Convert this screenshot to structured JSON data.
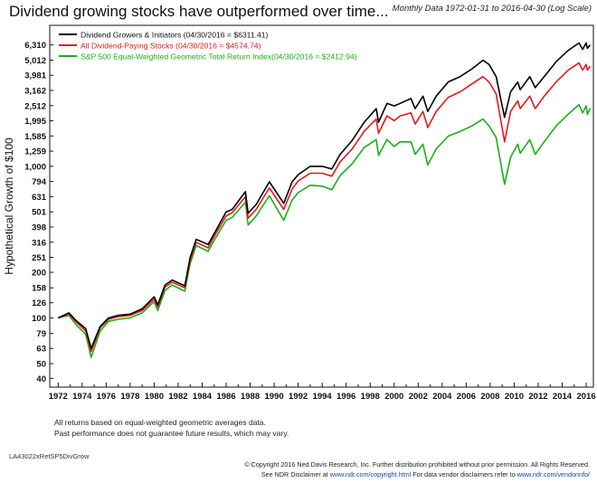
{
  "chart_data": {
    "type": "line",
    "title": "Dividend growing stocks have outperformed over time...",
    "subtitle": "Monthly Data 1972-01-31 to 2016-04-30 (Log Scale)",
    "xlabel": "",
    "ylabel": "Hypothetical Growth of $100",
    "y_scale": "log",
    "ylim": [
      35,
      8500
    ],
    "xlim": [
      1971.3,
      2016.6
    ],
    "y_ticks": [
      "6,310",
      "5,012",
      "3,981",
      "3,162",
      "2,512",
      "1,995",
      "1,585",
      "1,259",
      "1,000",
      "794",
      "631",
      "501",
      "398",
      "316",
      "251",
      "200",
      "158",
      "126",
      "100",
      "79",
      "63",
      "50",
      "40"
    ],
    "x_ticks": [
      "1972",
      "1974",
      "1976",
      "1978",
      "1980",
      "1982",
      "1984",
      "1986",
      "1988",
      "1990",
      "1992",
      "1994",
      "1996",
      "1998",
      "2000",
      "2002",
      "2004",
      "2006",
      "2008",
      "2010",
      "2012",
      "2014",
      "2016"
    ],
    "grid": false,
    "legend_position": "top-left",
    "series": [
      {
        "name": "Dividend Growers & Initiators (04/30/2016 = $6311.41)",
        "color": "#000000",
        "points": [
          [
            1972.0,
            100
          ],
          [
            1972.9,
            108
          ],
          [
            1973.5,
            96
          ],
          [
            1974.3,
            85
          ],
          [
            1974.75,
            63
          ],
          [
            1975.5,
            88
          ],
          [
            1976.2,
            100
          ],
          [
            1977.0,
            104
          ],
          [
            1978.0,
            106
          ],
          [
            1979.0,
            115
          ],
          [
            1980.0,
            138
          ],
          [
            1980.3,
            122
          ],
          [
            1980.9,
            165
          ],
          [
            1981.5,
            178
          ],
          [
            1982.55,
            163
          ],
          [
            1983.0,
            250
          ],
          [
            1983.5,
            330
          ],
          [
            1984.5,
            305
          ],
          [
            1985.0,
            360
          ],
          [
            1986.0,
            500
          ],
          [
            1986.5,
            520
          ],
          [
            1987.6,
            680
          ],
          [
            1987.83,
            490
          ],
          [
            1988.5,
            560
          ],
          [
            1989.6,
            790
          ],
          [
            1990.8,
            570
          ],
          [
            1991.5,
            790
          ],
          [
            1992.0,
            880
          ],
          [
            1993.0,
            1000
          ],
          [
            1994.0,
            1000
          ],
          [
            1994.8,
            960
          ],
          [
            1995.5,
            1200
          ],
          [
            1996.5,
            1480
          ],
          [
            1997.5,
            1950
          ],
          [
            1998.5,
            2400
          ],
          [
            1998.7,
            1950
          ],
          [
            1999.4,
            2600
          ],
          [
            2000.0,
            2500
          ],
          [
            2000.5,
            2600
          ],
          [
            2001.4,
            2800
          ],
          [
            2001.75,
            2400
          ],
          [
            2002.4,
            2900
          ],
          [
            2002.8,
            2300
          ],
          [
            2003.5,
            2900
          ],
          [
            2004.5,
            3600
          ],
          [
            2005.5,
            3900
          ],
          [
            2006.5,
            4400
          ],
          [
            2007.4,
            5000
          ],
          [
            2007.9,
            4700
          ],
          [
            2008.5,
            3900
          ],
          [
            2009.2,
            2100
          ],
          [
            2009.7,
            3100
          ],
          [
            2010.3,
            3600
          ],
          [
            2010.5,
            3200
          ],
          [
            2011.3,
            3900
          ],
          [
            2011.75,
            3300
          ],
          [
            2012.5,
            3900
          ],
          [
            2013.5,
            4900
          ],
          [
            2014.5,
            5800
          ],
          [
            2015.4,
            6500
          ],
          [
            2015.7,
            5900
          ],
          [
            2016.0,
            6500
          ],
          [
            2016.1,
            6000
          ],
          [
            2016.33,
            6311
          ]
        ]
      },
      {
        "name": "All Dividend-Paying Stocks (04/30/2016 = $4574.74)",
        "color": "#e8181c",
        "points": [
          [
            1972.0,
            100
          ],
          [
            1972.9,
            106
          ],
          [
            1973.5,
            94
          ],
          [
            1974.3,
            82
          ],
          [
            1974.75,
            60
          ],
          [
            1975.5,
            86
          ],
          [
            1976.2,
            98
          ],
          [
            1977.0,
            102
          ],
          [
            1978.0,
            104
          ],
          [
            1979.0,
            112
          ],
          [
            1980.0,
            133
          ],
          [
            1980.3,
            118
          ],
          [
            1980.9,
            160
          ],
          [
            1981.5,
            172
          ],
          [
            1982.55,
            158
          ],
          [
            1983.0,
            240
          ],
          [
            1983.5,
            315
          ],
          [
            1984.5,
            290
          ],
          [
            1985.0,
            345
          ],
          [
            1986.0,
            470
          ],
          [
            1986.5,
            495
          ],
          [
            1987.6,
            630
          ],
          [
            1987.83,
            455
          ],
          [
            1988.5,
            520
          ],
          [
            1989.6,
            720
          ],
          [
            1990.8,
            520
          ],
          [
            1991.5,
            710
          ],
          [
            1992.0,
            800
          ],
          [
            1993.0,
            900
          ],
          [
            1994.0,
            900
          ],
          [
            1994.8,
            860
          ],
          [
            1995.5,
            1070
          ],
          [
            1996.5,
            1300
          ],
          [
            1997.5,
            1700
          ],
          [
            1998.5,
            2050
          ],
          [
            1998.7,
            1650
          ],
          [
            1999.4,
            2150
          ],
          [
            2000.0,
            2000
          ],
          [
            2000.5,
            2150
          ],
          [
            2001.4,
            2250
          ],
          [
            2001.75,
            1900
          ],
          [
            2002.4,
            2300
          ],
          [
            2002.8,
            1800
          ],
          [
            2003.5,
            2300
          ],
          [
            2004.5,
            2850
          ],
          [
            2005.5,
            3100
          ],
          [
            2006.5,
            3500
          ],
          [
            2007.4,
            3900
          ],
          [
            2007.9,
            3600
          ],
          [
            2008.5,
            3000
          ],
          [
            2009.2,
            1450
          ],
          [
            2009.7,
            2300
          ],
          [
            2010.3,
            2700
          ],
          [
            2010.5,
            2400
          ],
          [
            2011.3,
            2900
          ],
          [
            2011.75,
            2400
          ],
          [
            2012.5,
            2900
          ],
          [
            2013.5,
            3600
          ],
          [
            2014.5,
            4300
          ],
          [
            2015.4,
            4800
          ],
          [
            2015.7,
            4300
          ],
          [
            2016.0,
            4700
          ],
          [
            2016.1,
            4300
          ],
          [
            2016.33,
            4575
          ]
        ]
      },
      {
        "name": "S&P 500 Equal-Weighted Geometric Total Return Index(04/30/2016 = $2412.94)",
        "color": "#19b019",
        "points": [
          [
            1972.0,
            100
          ],
          [
            1972.9,
            104
          ],
          [
            1973.5,
            90
          ],
          [
            1974.3,
            78
          ],
          [
            1974.75,
            55
          ],
          [
            1975.5,
            82
          ],
          [
            1976.2,
            95
          ],
          [
            1977.0,
            98
          ],
          [
            1978.0,
            100
          ],
          [
            1979.0,
            108
          ],
          [
            1980.0,
            128
          ],
          [
            1980.3,
            112
          ],
          [
            1980.9,
            152
          ],
          [
            1981.5,
            165
          ],
          [
            1982.55,
            150
          ],
          [
            1983.0,
            228
          ],
          [
            1983.5,
            300
          ],
          [
            1984.5,
            275
          ],
          [
            1985.0,
            325
          ],
          [
            1986.0,
            440
          ],
          [
            1986.5,
            460
          ],
          [
            1987.6,
            580
          ],
          [
            1987.83,
            410
          ],
          [
            1988.5,
            470
          ],
          [
            1989.6,
            640
          ],
          [
            1990.8,
            440
          ],
          [
            1991.5,
            600
          ],
          [
            1992.0,
            670
          ],
          [
            1993.0,
            750
          ],
          [
            1994.0,
            740
          ],
          [
            1994.8,
            700
          ],
          [
            1995.5,
            870
          ],
          [
            1996.5,
            1040
          ],
          [
            1997.5,
            1330
          ],
          [
            1998.5,
            1500
          ],
          [
            1998.7,
            1180
          ],
          [
            1999.4,
            1500
          ],
          [
            2000.0,
            1350
          ],
          [
            2000.5,
            1450
          ],
          [
            2001.4,
            1450
          ],
          [
            2001.75,
            1200
          ],
          [
            2002.4,
            1400
          ],
          [
            2002.8,
            1020
          ],
          [
            2003.5,
            1300
          ],
          [
            2004.5,
            1580
          ],
          [
            2005.5,
            1700
          ],
          [
            2006.5,
            1850
          ],
          [
            2007.4,
            2050
          ],
          [
            2007.9,
            1850
          ],
          [
            2008.5,
            1550
          ],
          [
            2009.2,
            760
          ],
          [
            2009.7,
            1150
          ],
          [
            2010.3,
            1400
          ],
          [
            2010.5,
            1220
          ],
          [
            2011.3,
            1500
          ],
          [
            2011.75,
            1200
          ],
          [
            2012.5,
            1450
          ],
          [
            2013.5,
            1850
          ],
          [
            2014.5,
            2200
          ],
          [
            2015.4,
            2550
          ],
          [
            2015.7,
            2250
          ],
          [
            2016.0,
            2500
          ],
          [
            2016.1,
            2200
          ],
          [
            2016.33,
            2413
          ]
        ]
      }
    ]
  },
  "notes": {
    "line1": "All returns based on equal-weighted geometric averages data.",
    "line2": "Past performance does not guarantee future results, which may vary."
  },
  "footer": {
    "chart_code": "LA43022xRetSP5DivGrow",
    "copyright": "© Copyright 2016 Ned Davis Research, Inc. Further distribution prohibited without prior permission. All Rights Reserved.",
    "disclaimer_prefix": "See NDR Disclaimer at ",
    "disclaimer_link": "www.ndr.com/copyright.html",
    "vendor_prefix": "   For data vendor disclaimers refer to ",
    "vendor_link": "www.ndr.com/vendorinfo/"
  }
}
